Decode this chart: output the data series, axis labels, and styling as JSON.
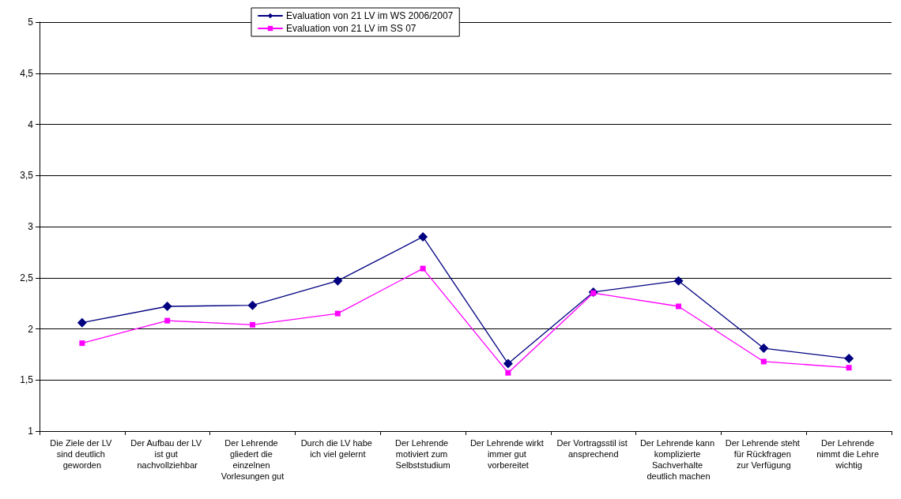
{
  "chart_data": {
    "type": "line",
    "categories": [
      "Die Ziele der LV sind deutlich geworden",
      "Der Aufbau der LV ist gut nachvollziehbar",
      "Der Lehrende gliedert die einzelnen Vorlesungen gut",
      "Durch die LV habe ich viel gelernt",
      "Der Lehrende motiviert zum Selbststudium",
      "Der Lehrende wirkt immer gut vorbereitet",
      "Der Vortragsstil ist ansprechend",
      "Der Lehrende kann komplizierte Sachverhalte deutlich machen",
      "Der Lehrende steht für Rückfragen zur Verfügung",
      "Der Lehrende nimmt die Lehre wichtig"
    ],
    "series": [
      {
        "name": "Evaluation von 21 LV im WS 2006/2007",
        "color": "#000080",
        "marker": "diamond",
        "values": [
          2.06,
          2.22,
          2.23,
          2.47,
          2.9,
          1.66,
          2.36,
          2.47,
          1.81,
          1.71
        ]
      },
      {
        "name": "Evaluation von 21 LV im SS 07",
        "color": "#ff00ff",
        "marker": "square",
        "values": [
          1.86,
          2.08,
          2.04,
          2.15,
          2.59,
          1.57,
          2.35,
          2.22,
          1.68,
          1.62
        ]
      }
    ],
    "ylim": [
      1,
      5
    ],
    "yticks": [
      1,
      {
        "value": 1.5,
        "label": "1,5"
      },
      2,
      {
        "value": 2.5,
        "label": "2,5"
      },
      3,
      {
        "value": 3.5,
        "label": "3,5"
      },
      4,
      {
        "value": 4.5,
        "label": "4,5"
      },
      5
    ],
    "grid": "y",
    "legend": "top",
    "line_style": "solid"
  }
}
